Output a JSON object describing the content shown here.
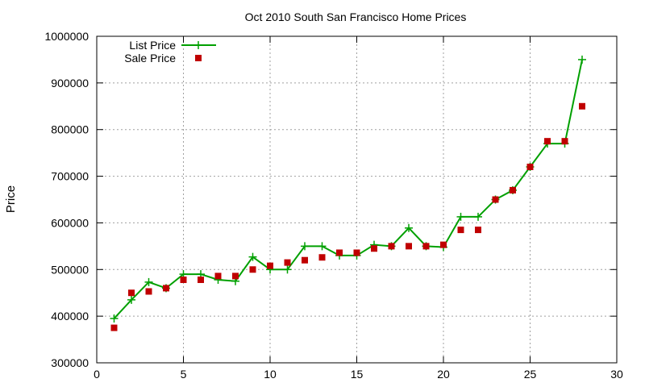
{
  "chart_data": {
    "type": "line",
    "title": "Oct 2010 South San Francisco Home Prices",
    "xlabel": "",
    "ylabel": "Price",
    "xlim": [
      0,
      30
    ],
    "ylim": [
      300000,
      1000000
    ],
    "xticks": [
      0,
      5,
      10,
      15,
      20,
      25,
      30
    ],
    "yticks": [
      300000,
      400000,
      500000,
      600000,
      700000,
      800000,
      900000,
      1000000
    ],
    "grid": true,
    "legend_position": "top-left",
    "x": [
      1,
      2,
      3,
      4,
      5,
      6,
      7,
      8,
      9,
      10,
      11,
      12,
      13,
      14,
      15,
      16,
      17,
      18,
      19,
      20,
      21,
      22,
      23,
      24,
      25,
      26,
      27,
      28
    ],
    "series": [
      {
        "name": "List Price",
        "style": "line-with-plus-markers",
        "color": "#00a000",
        "values": [
          395000,
          435000,
          473000,
          460000,
          490000,
          490000,
          478000,
          475000,
          527000,
          500000,
          500000,
          550000,
          550000,
          530000,
          530000,
          553000,
          550000,
          589000,
          550000,
          548000,
          613000,
          613000,
          650000,
          670000,
          720000,
          770000,
          770000,
          950000
        ]
      },
      {
        "name": "Sale Price",
        "style": "square-markers",
        "color": "#c00000",
        "values": [
          375000,
          450000,
          453000,
          460000,
          478000,
          478000,
          486000,
          486000,
          500000,
          508000,
          515000,
          520000,
          526000,
          536000,
          536000,
          545000,
          550000,
          550000,
          550000,
          553000,
          585000,
          585000,
          650000,
          670000,
          720000,
          775000,
          775000,
          850000
        ]
      }
    ]
  }
}
